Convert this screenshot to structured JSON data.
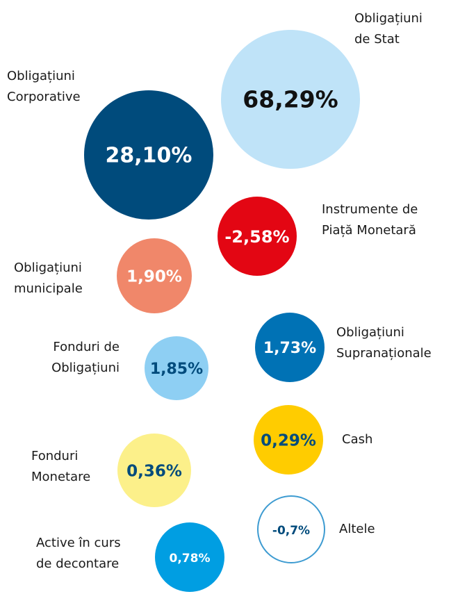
{
  "nodes": [
    {
      "label": [
        "Obligațiuni",
        "de Stat"
      ],
      "value": "68,29%",
      "color": "#bfe3f8",
      "text_color": "#111111"
    },
    {
      "label": [
        "Obligațiuni",
        "Corporative"
      ],
      "value": "28,10%",
      "color": "#004b7c",
      "text_color": "#ffffff"
    },
    {
      "label": [
        "Instrumente de",
        "Piață Monetară"
      ],
      "value": "-2,58%",
      "color": "#e30613",
      "text_color": "#ffffff"
    },
    {
      "label": [
        "Obligațiuni",
        "municipale"
      ],
      "value": "1,90%",
      "color": "#f0876a",
      "text_color": "#ffffff"
    },
    {
      "label": [
        "Fonduri de",
        "Obligațiuni"
      ],
      "value": "1,85%",
      "color": "#8ecff3",
      "text_color": "#004b7c"
    },
    {
      "label": [
        "Obligațiuni",
        "Supranaționale"
      ],
      "value": "1,73%",
      "color": "#0072b5",
      "text_color": "#ffffff"
    },
    {
      "label": [
        "Cash"
      ],
      "value": "0,29%",
      "color": "#ffcc00",
      "text_color": "#004b7c"
    },
    {
      "label": [
        "Fonduri",
        "Monetare"
      ],
      "value": "0,36%",
      "color": "#fcf08a",
      "text_color": "#004b7c"
    },
    {
      "label": [
        "Altele"
      ],
      "value": "-0,7%",
      "color": "#ffffff",
      "text_color": "#004b7c",
      "stroke": "#3d9bd1"
    },
    {
      "label": [
        "Active în curs",
        "de decontare"
      ],
      "value": "0,78%",
      "color": "#009ee2",
      "text_color": "#ffffff"
    }
  ]
}
